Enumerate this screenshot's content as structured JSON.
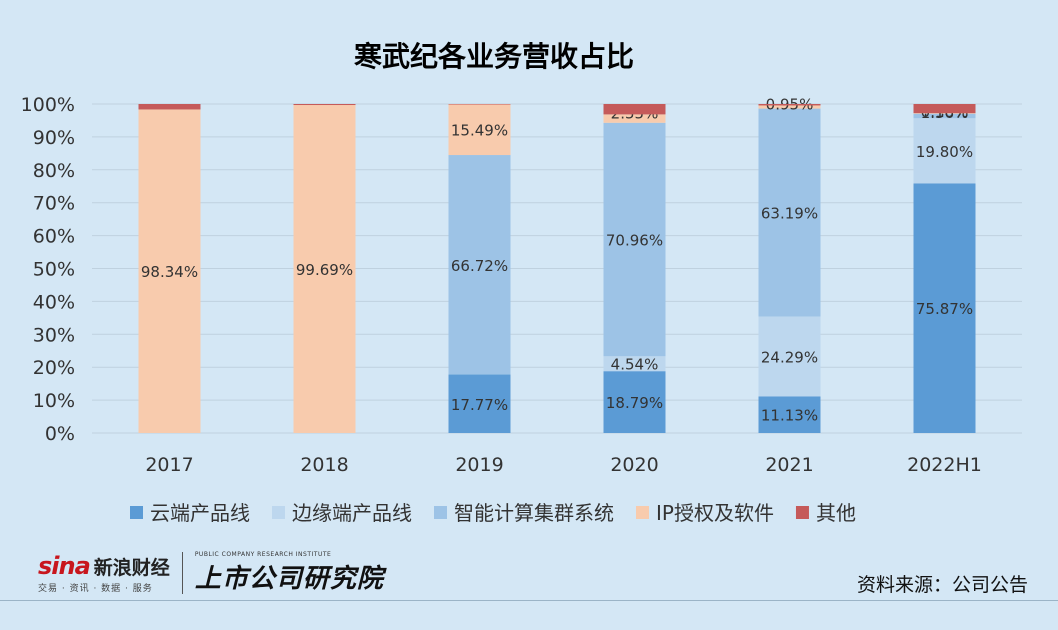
{
  "chart_data": {
    "type": "bar",
    "stacked": true,
    "title": "寒武纪各业务营收占比",
    "categories": [
      "2017",
      "2018",
      "2019",
      "2020",
      "2021",
      "2022H1"
    ],
    "ylim": [
      0,
      100
    ],
    "yticks": [
      "0%",
      "10%",
      "20%",
      "30%",
      "40%",
      "50%",
      "60%",
      "70%",
      "80%",
      "90%",
      "100%"
    ],
    "grid": true,
    "legend_position": "bottom",
    "series": [
      {
        "name": "云端产品线",
        "color": "#5b9bd5",
        "values": [
          0,
          0,
          17.77,
          18.79,
          11.13,
          75.87
        ],
        "labels": [
          "",
          "",
          "17.77%",
          "18.79%",
          "11.13%",
          "75.87%"
        ]
      },
      {
        "name": "边缘端产品线",
        "color": "#bdd7ee",
        "values": [
          0,
          0,
          0,
          4.54,
          24.29,
          19.8
        ],
        "labels": [
          "",
          "",
          "",
          "4.54%",
          "24.29%",
          "19.80%"
        ]
      },
      {
        "name": "智能计算集群系统",
        "color": "#9dc3e6",
        "values": [
          0,
          0,
          66.72,
          70.96,
          63.19,
          1.36
        ],
        "labels": [
          "",
          "",
          "66.72%",
          "70.96%",
          "63.19%",
          "1.36%"
        ]
      },
      {
        "name": "IP授权及软件",
        "color": "#f8cbad",
        "values": [
          98.34,
          99.69,
          15.49,
          2.55,
          0.95,
          0.18
        ],
        "labels": [
          "98.34%",
          "99.69%",
          "15.49%",
          "2.55%",
          "0.95%",
          "0.18%"
        ]
      },
      {
        "name": "其他",
        "color": "#c55a5a",
        "values": [
          1.66,
          0.31,
          0.02,
          3.16,
          0.44,
          2.79
        ],
        "labels": [
          "",
          "",
          "",
          "",
          "",
          ""
        ]
      }
    ]
  },
  "footer": {
    "sina_logo": "sina",
    "sina_name": "新浪财经",
    "sina_tagline": "交易 · 资讯 · 数据 · 服务",
    "ssr_en": "PUBLIC COMPANY RESEARCH INSTITUTE",
    "ssr_cn": "上市公司研究院",
    "source": "资料来源：公司公告"
  }
}
